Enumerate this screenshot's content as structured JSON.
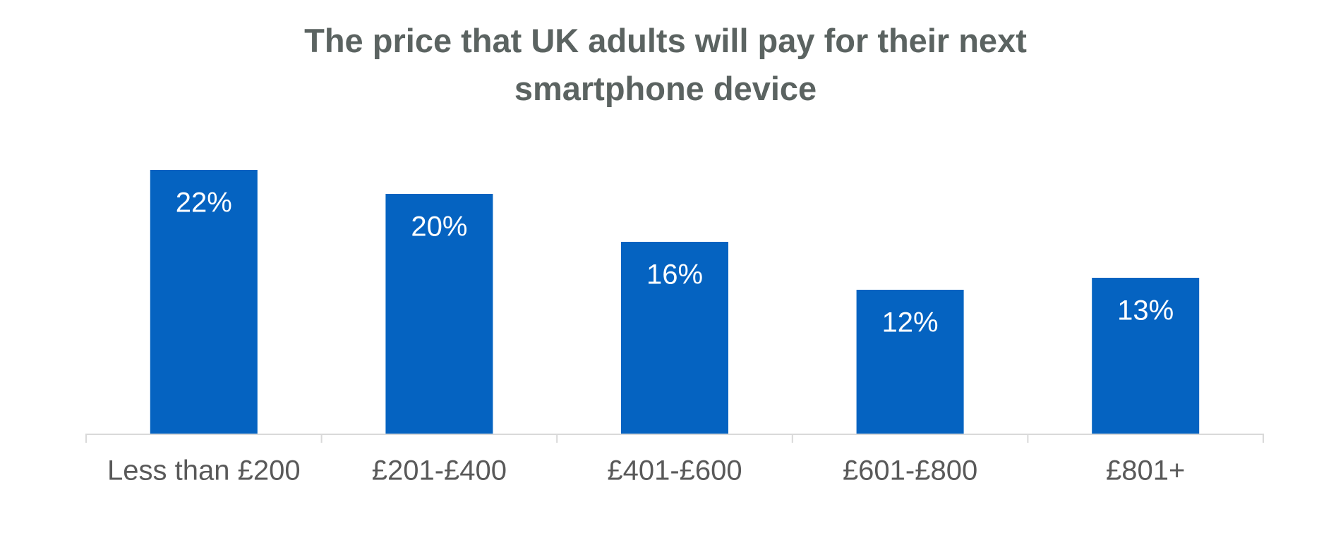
{
  "chart_data": {
    "type": "bar",
    "title": "The price that UK adults will pay for their next smartphone device",
    "categories": [
      "Less than £200",
      "£201-£400",
      "£401-£600",
      "£601-£800",
      "£801+"
    ],
    "values": [
      22,
      20,
      16,
      12,
      13
    ],
    "value_labels": [
      "22%",
      "20%",
      "16%",
      "12%",
      "13%"
    ],
    "color": "#0563c1"
  }
}
